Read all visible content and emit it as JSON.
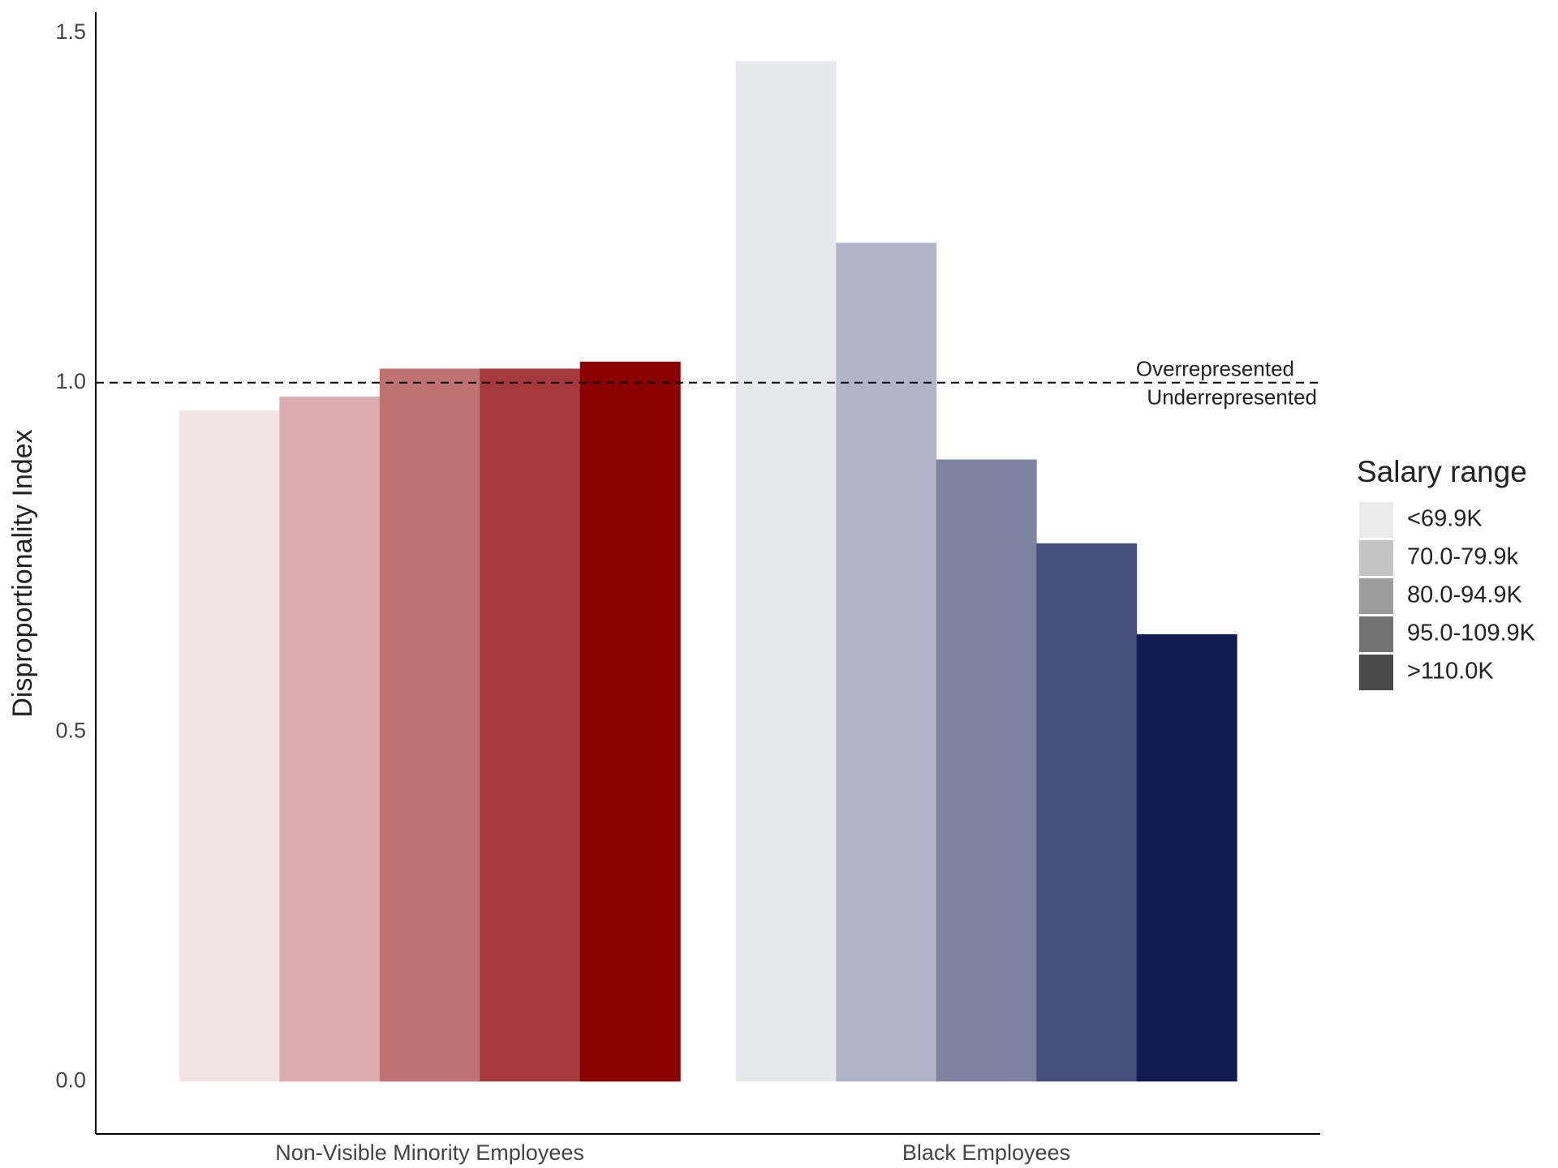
{
  "chart_data": {
    "type": "bar",
    "y_label": "Disproportionality Index",
    "categories": [
      "Non-Visible Minority Employees",
      "Black Employees"
    ],
    "legend_title": "Salary range",
    "series": [
      {
        "name": "<69.9K",
        "color": "#ebebeb",
        "bar_colors": [
          "#f2e4e5",
          "#e7e8ed"
        ],
        "values": [
          0.96,
          1.46
        ]
      },
      {
        "name": "70.0-79.9k",
        "color": "#c4c4c4",
        "bar_colors": [
          "#dbadaf",
          "#b1b5c8"
        ],
        "values": [
          0.98,
          1.2
        ]
      },
      {
        "name": "80.0-94.9K",
        "color": "#9c9c9c",
        "bar_colors": [
          "#be7272",
          "#7d83a1"
        ],
        "values": [
          1.02,
          0.89
        ]
      },
      {
        "name": "95.0-109.9K",
        "color": "#737373",
        "bar_colors": [
          "#a5393b",
          "#46517b"
        ],
        "values": [
          1.02,
          0.77
        ]
      },
      {
        "name": ">110.0K",
        "color": "#4a4a4a",
        "bar_colors": [
          "#8b0000",
          "#111c55"
        ],
        "values": [
          1.03,
          0.64
        ]
      }
    ],
    "ylim": [
      -0.075,
      1.53
    ],
    "yticks": [
      {
        "value": 0,
        "label": "0.0"
      },
      0.5,
      {
        "value": 1,
        "label": "1.0"
      },
      1.5
    ],
    "reference_line": {
      "value": 1,
      "label_above": "Overrepresented",
      "label_below": "Underrepresented"
    },
    "grid": false
  }
}
